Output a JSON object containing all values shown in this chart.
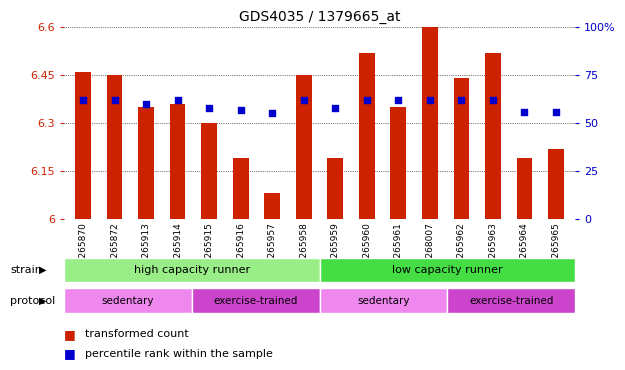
{
  "title": "GDS4035 / 1379665_at",
  "samples": [
    "GSM265870",
    "GSM265872",
    "GSM265913",
    "GSM265914",
    "GSM265915",
    "GSM265916",
    "GSM265957",
    "GSM265958",
    "GSM265959",
    "GSM265960",
    "GSM265961",
    "GSM268007",
    "GSM265962",
    "GSM265963",
    "GSM265964",
    "GSM265965"
  ],
  "transformed_count": [
    6.46,
    6.45,
    6.35,
    6.36,
    6.3,
    6.19,
    6.08,
    6.45,
    6.19,
    6.52,
    6.35,
    6.6,
    6.44,
    6.52,
    6.19,
    6.22
  ],
  "percentile_rank": [
    62,
    62,
    60,
    62,
    58,
    57,
    55,
    62,
    58,
    62,
    62,
    62,
    62,
    62,
    56,
    56
  ],
  "ylim_left": [
    6.0,
    6.6
  ],
  "ylim_right": [
    0,
    100
  ],
  "yticks_left": [
    6.0,
    6.15,
    6.3,
    6.45,
    6.6
  ],
  "yticks_right": [
    0,
    25,
    50,
    75,
    100
  ],
  "ytick_labels_left": [
    "6",
    "6.15",
    "6.3",
    "6.45",
    "6.6"
  ],
  "ytick_labels_right": [
    "0",
    "25",
    "50",
    "75",
    "100%"
  ],
  "bar_color": "#cc2200",
  "dot_color": "#0000cc",
  "strain_groups": [
    {
      "label": "high capacity runner",
      "start": 0,
      "end": 8,
      "color": "#99ee88"
    },
    {
      "label": "low capacity runner",
      "start": 8,
      "end": 16,
      "color": "#44dd44"
    }
  ],
  "protocol_groups": [
    {
      "label": "sedentary",
      "start": 0,
      "end": 4,
      "color": "#ee88ee"
    },
    {
      "label": "exercise-trained",
      "start": 4,
      "end": 8,
      "color": "#cc44cc"
    },
    {
      "label": "sedentary",
      "start": 8,
      "end": 12,
      "color": "#ee88ee"
    },
    {
      "label": "exercise-trained",
      "start": 12,
      "end": 16,
      "color": "#cc44cc"
    }
  ],
  "legend_items": [
    {
      "label": "transformed count",
      "color": "#cc2200",
      "marker": "s"
    },
    {
      "label": "percentile rank within the sample",
      "color": "#0000cc",
      "marker": "s"
    }
  ],
  "xlabel_color": "#cc2200",
  "ylabel_left_color": "#cc2200",
  "ylabel_right_color": "#0000cc",
  "grid_color": "#000000",
  "background_color": "#ffffff",
  "plot_bg_color": "#ffffff",
  "tick_bg_color": "#dddddd"
}
